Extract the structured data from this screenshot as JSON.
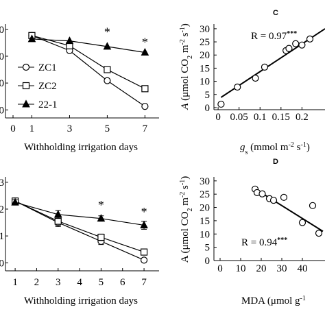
{
  "chart_data": [
    {
      "type": "line",
      "x": [
        1,
        3,
        5,
        7
      ],
      "xlim": [
        -0.4,
        7.75
      ],
      "ylim": [
        -3,
        32
      ],
      "xticks": [
        0,
        1,
        3,
        5,
        7
      ],
      "yticks": [
        0,
        {
          "value": 10,
          "label": "0"
        },
        {
          "value": 20,
          "label": "0"
        },
        {
          "value": 30,
          "label": "0"
        }
      ],
      "xlabel": "Withholding irrigation days",
      "legend": "upper-left",
      "series": [
        {
          "name": "ZC1",
          "color": "#000000",
          "marker": "circle",
          "marker_fill": "#ffffff",
          "values": [
            27.7,
            22.1,
            10.9,
            1.3
          ]
        },
        {
          "name": "ZC2",
          "color": "#000000",
          "marker": "square",
          "marker_fill": "#ffffff",
          "values": [
            27.7,
            23.9,
            15,
            7.9
          ]
        },
        {
          "name": "22-1",
          "color": "#000000",
          "marker": "triangle",
          "marker_fill": "#000000",
          "values": [
            26.4,
            25.7,
            23.6,
            21.4
          ]
        }
      ],
      "annotations": [
        {
          "text": "*",
          "x": 5,
          "y": 28.8
        },
        {
          "text": "*",
          "x": 7,
          "y": 25
        }
      ]
    },
    {
      "type": "scatter",
      "panel_label": "C",
      "xlim": [
        -0.01,
        0.255
      ],
      "ylim": [
        -0.8,
        31.8
      ],
      "xticks": [
        0,
        0.05,
        0.1,
        0.15,
        0.2
      ],
      "yticks": [
        0,
        5,
        10,
        15,
        20,
        25,
        30
      ],
      "ylabel": [
        "A",
        " (μmol CO",
        "2",
        " m",
        "-2",
        " s",
        "-1",
        ")"
      ],
      "xlabel": [
        "g",
        "s",
        " (mmol m",
        "-2",
        " s",
        "-1",
        ")"
      ],
      "r_text": "R = 0.97",
      "r_sig": "***",
      "x": [
        0.007,
        0.046,
        0.089,
        0.111,
        0.162,
        0.169,
        0.185,
        0.2,
        0.219
      ],
      "values": [
        1.3,
        7.8,
        11.2,
        15.4,
        21.7,
        22.5,
        24.3,
        23.8,
        26.1
      ],
      "color": "#000000",
      "trendline": {
        "x": [
          0.007,
          0.255
        ],
        "values": [
          3.9,
          30
        ]
      }
    },
    {
      "type": "line",
      "x": [
        1,
        3,
        5,
        7
      ],
      "xlim": [
        0.55,
        7.7
      ],
      "ylim": [
        -0.3,
        3.2
      ],
      "xticks": [
        1,
        2,
        3,
        4,
        5,
        6,
        7
      ],
      "yticks": [
        0,
        1,
        2,
        3
      ],
      "xlabel": "Withholding irrigation days",
      "series": [
        {
          "name": "ZC1",
          "color": "#000000",
          "marker": "circle",
          "marker_fill": "#ffffff",
          "values": [
            2.3,
            1.5,
            0.8,
            0.1
          ],
          "errors": [
            0.05,
            0.1,
            0.12,
            0.05
          ]
        },
        {
          "name": "ZC2",
          "color": "#000000",
          "marker": "square",
          "marker_fill": "#ffffff",
          "values": [
            2.3,
            1.55,
            0.95,
            0.4
          ],
          "errors": [
            0.05,
            0.2,
            0.12,
            0.05
          ]
        },
        {
          "name": "22-1",
          "color": "#000000",
          "marker": "triangle",
          "marker_fill": "#000000",
          "values": [
            2.25,
            1.8,
            1.65,
            1.4
          ],
          "errors": [
            0.1,
            0.15,
            0.1,
            0.15
          ]
        }
      ],
      "annotations": [
        {
          "text": "*",
          "x": 5,
          "y": 2.13
        },
        {
          "text": "*",
          "x": 7,
          "y": 1.87
        }
      ]
    },
    {
      "type": "scatter",
      "panel_label": "D",
      "xlim": [
        -3,
        51
      ],
      "ylim": [
        0,
        31.5
      ],
      "xticks": [
        0,
        10,
        20,
        30,
        40
      ],
      "yticks": [
        0,
        5,
        10,
        15,
        20,
        25,
        30
      ],
      "ylabel": [
        "A (μmol CO",
        "2",
        " m",
        "-2",
        " s",
        "-1",
        ")"
      ],
      "xlabel": [
        "MDA (μmol g",
        "-1"
      ],
      "r_text": "R = 0.94",
      "r_sig": "***",
      "x": [
        17,
        18,
        20.5,
        24,
        26,
        31,
        40,
        45,
        48
      ],
      "values": [
        26.9,
        25.6,
        25.1,
        23.3,
        22.7,
        23.8,
        14.3,
        20.7,
        10.3
      ],
      "color": "#000000",
      "trendline": {
        "x": [
          16,
          50
        ],
        "values": [
          27.5,
          11
        ]
      }
    }
  ]
}
